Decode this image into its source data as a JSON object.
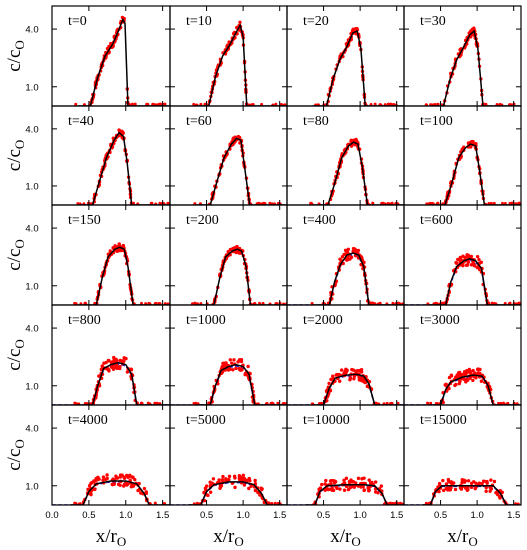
{
  "chart_data": {
    "type": "line",
    "title": "",
    "xlabel": "x/r",
    "xlabel_sub": "O",
    "ylabel": "c/c",
    "ylabel_sub": "O",
    "grid_rows": 5,
    "grid_cols": 4,
    "xlim": [
      0.0,
      1.6
    ],
    "ylim": [
      0.0,
      5.2
    ],
    "x_ticks": [
      0.0,
      0.5,
      1.0,
      1.5
    ],
    "x_tick_labels_first_col": [
      "0.0",
      "0.5",
      "1.0",
      "1.5"
    ],
    "x_tick_labels_other_cols": [
      "0.5",
      "1.0",
      "1.5"
    ],
    "y_tick_values": [
      1.0,
      4.0
    ],
    "y_tick_labels": [
      "1.0",
      "4.0"
    ],
    "colors": {
      "model": "#000000",
      "simulation_points": "#ff0000",
      "fit": "#1f1fc8"
    },
    "panels": [
      {
        "label": "t=0",
        "t": 0,
        "profile": [
          [
            0.35,
            0
          ],
          [
            0.52,
            0
          ],
          [
            0.62,
            1.5
          ],
          [
            0.72,
            2.6
          ],
          [
            0.82,
            3.2
          ],
          [
            0.9,
            3.9
          ],
          [
            0.96,
            4.5
          ],
          [
            0.99,
            4.3
          ],
          [
            1.03,
            0
          ],
          [
            1.6,
            0
          ]
        ]
      },
      {
        "label": "t=10",
        "t": 10,
        "profile": [
          [
            0.35,
            0
          ],
          [
            0.53,
            0
          ],
          [
            0.62,
            1.5
          ],
          [
            0.72,
            2.6
          ],
          [
            0.82,
            3.2
          ],
          [
            0.9,
            3.8
          ],
          [
            0.96,
            4.2
          ],
          [
            1.0,
            3.6
          ],
          [
            1.05,
            0
          ],
          [
            1.6,
            0
          ]
        ]
      },
      {
        "label": "t=20",
        "t": 20,
        "profile": [
          [
            0.35,
            0
          ],
          [
            0.54,
            0
          ],
          [
            0.63,
            1.4
          ],
          [
            0.72,
            2.4
          ],
          [
            0.82,
            3.1
          ],
          [
            0.9,
            3.8
          ],
          [
            0.96,
            3.9
          ],
          [
            1.01,
            3.0
          ],
          [
            1.07,
            0
          ],
          [
            1.6,
            0
          ]
        ]
      },
      {
        "label": "t=30",
        "t": 30,
        "profile": [
          [
            0.35,
            0
          ],
          [
            0.54,
            0
          ],
          [
            0.63,
            1.4
          ],
          [
            0.72,
            2.4
          ],
          [
            0.82,
            3.1
          ],
          [
            0.9,
            3.7
          ],
          [
            0.96,
            3.9
          ],
          [
            1.01,
            3.0
          ],
          [
            1.08,
            0
          ],
          [
            1.6,
            0
          ]
        ]
      },
      {
        "label": "t=40",
        "t": 40,
        "profile": [
          [
            0.35,
            0
          ],
          [
            0.55,
            0
          ],
          [
            0.64,
            1.2
          ],
          [
            0.74,
            2.5
          ],
          [
            0.84,
            3.4
          ],
          [
            0.91,
            3.8
          ],
          [
            0.97,
            3.6
          ],
          [
            1.02,
            2.2
          ],
          [
            1.08,
            0
          ],
          [
            1.6,
            0
          ]
        ]
      },
      {
        "label": "t=60",
        "t": 60,
        "profile": [
          [
            0.35,
            0
          ],
          [
            0.55,
            0
          ],
          [
            0.64,
            1.2
          ],
          [
            0.74,
            2.5
          ],
          [
            0.84,
            3.2
          ],
          [
            0.91,
            3.5
          ],
          [
            0.97,
            3.4
          ],
          [
            1.02,
            2.0
          ],
          [
            1.09,
            0
          ],
          [
            1.6,
            0
          ]
        ]
      },
      {
        "label": "t=80",
        "t": 80,
        "profile": [
          [
            0.35,
            0
          ],
          [
            0.56,
            0
          ],
          [
            0.65,
            1.1
          ],
          [
            0.75,
            2.5
          ],
          [
            0.84,
            3.1
          ],
          [
            0.91,
            3.3
          ],
          [
            0.97,
            3.2
          ],
          [
            1.03,
            2.0
          ],
          [
            1.1,
            0
          ],
          [
            1.6,
            0
          ]
        ]
      },
      {
        "label": "t=100",
        "t": 100,
        "profile": [
          [
            0.35,
            0
          ],
          [
            0.56,
            0
          ],
          [
            0.65,
            1.1
          ],
          [
            0.75,
            2.5
          ],
          [
            0.84,
            3.0
          ],
          [
            0.91,
            3.2
          ],
          [
            0.98,
            3.1
          ],
          [
            1.03,
            1.9
          ],
          [
            1.1,
            0
          ],
          [
            1.6,
            0
          ]
        ]
      },
      {
        "label": "t=150",
        "t": 150,
        "profile": [
          [
            0.35,
            0
          ],
          [
            0.6,
            0
          ],
          [
            0.68,
            1.4
          ],
          [
            0.76,
            2.5
          ],
          [
            0.85,
            2.9
          ],
          [
            0.92,
            3.0
          ],
          [
            0.98,
            2.9
          ],
          [
            1.03,
            2.0
          ],
          [
            1.1,
            0
          ],
          [
            1.6,
            0
          ]
        ]
      },
      {
        "label": "t=200",
        "t": 200,
        "profile": [
          [
            0.35,
            0
          ],
          [
            0.6,
            0
          ],
          [
            0.68,
            1.4
          ],
          [
            0.76,
            2.5
          ],
          [
            0.85,
            2.8
          ],
          [
            0.92,
            2.9
          ],
          [
            0.98,
            2.8
          ],
          [
            1.04,
            2.0
          ],
          [
            1.1,
            0
          ],
          [
            1.6,
            0
          ]
        ]
      },
      {
        "label": "t=400",
        "t": 400,
        "profile": [
          [
            0.35,
            0
          ],
          [
            0.58,
            0
          ],
          [
            0.65,
            1.2
          ],
          [
            0.73,
            2.1
          ],
          [
            0.82,
            2.6
          ],
          [
            0.9,
            2.7
          ],
          [
            0.98,
            2.6
          ],
          [
            1.05,
            2.0
          ],
          [
            1.12,
            0
          ],
          [
            1.6,
            0
          ]
        ]
      },
      {
        "label": "t=600",
        "t": 600,
        "profile": [
          [
            0.35,
            0
          ],
          [
            0.57,
            0
          ],
          [
            0.64,
            1.2
          ],
          [
            0.72,
            2.0
          ],
          [
            0.82,
            2.3
          ],
          [
            0.9,
            2.4
          ],
          [
            0.98,
            2.3
          ],
          [
            1.06,
            1.9
          ],
          [
            1.14,
            0
          ],
          [
            1.6,
            0
          ]
        ]
      },
      {
        "label": "t=800",
        "t": 800,
        "profile": [
          [
            0.35,
            0
          ],
          [
            0.55,
            0
          ],
          [
            0.62,
            1.0
          ],
          [
            0.7,
            1.9
          ],
          [
            0.8,
            2.1
          ],
          [
            0.9,
            2.2
          ],
          [
            1.0,
            2.1
          ],
          [
            1.08,
            1.6
          ],
          [
            1.15,
            0
          ],
          [
            1.6,
            0
          ]
        ]
      },
      {
        "label": "t=1000",
        "t": 1000,
        "profile": [
          [
            0.35,
            0
          ],
          [
            0.55,
            0
          ],
          [
            0.62,
            1.0
          ],
          [
            0.7,
            1.8
          ],
          [
            0.8,
            2.0
          ],
          [
            0.9,
            2.1
          ],
          [
            1.0,
            2.0
          ],
          [
            1.08,
            1.6
          ],
          [
            1.16,
            0
          ],
          [
            1.6,
            0
          ]
        ]
      },
      {
        "label": "t=2000",
        "t": 2000,
        "profile": [
          [
            0.35,
            0
          ],
          [
            0.5,
            0
          ],
          [
            0.58,
            0.9
          ],
          [
            0.66,
            1.4
          ],
          [
            0.8,
            1.55
          ],
          [
            0.95,
            1.6
          ],
          [
            1.05,
            1.5
          ],
          [
            1.12,
            1.1
          ],
          [
            1.2,
            0
          ],
          [
            1.6,
            0
          ]
        ]
      },
      {
        "label": "t=3000",
        "t": 3000,
        "profile": [
          [
            0.35,
            0
          ],
          [
            0.5,
            0
          ],
          [
            0.57,
            0.8
          ],
          [
            0.64,
            1.2
          ],
          [
            0.8,
            1.45
          ],
          [
            0.95,
            1.55
          ],
          [
            1.07,
            1.5
          ],
          [
            1.15,
            1.0
          ],
          [
            1.22,
            0
          ],
          [
            1.6,
            0
          ]
        ]
      },
      {
        "label": "t=4000",
        "t": 4000,
        "profile": [
          [
            0.25,
            0
          ],
          [
            0.42,
            0
          ],
          [
            0.5,
            0.7
          ],
          [
            0.6,
            1.1
          ],
          [
            0.8,
            1.25
          ],
          [
            1.0,
            1.25
          ],
          [
            1.15,
            1.1
          ],
          [
            1.25,
            0.6
          ],
          [
            1.32,
            0
          ],
          [
            1.6,
            0
          ]
        ]
      },
      {
        "label": "t=5000",
        "t": 5000,
        "profile": [
          [
            0.25,
            0
          ],
          [
            0.42,
            0
          ],
          [
            0.5,
            0.7
          ],
          [
            0.6,
            1.05
          ],
          [
            0.8,
            1.2
          ],
          [
            1.0,
            1.2
          ],
          [
            1.15,
            1.05
          ],
          [
            1.25,
            0.6
          ],
          [
            1.33,
            0
          ],
          [
            1.6,
            0
          ]
        ]
      },
      {
        "label": "t=10000",
        "t": 10000,
        "profile": [
          [
            0.25,
            0
          ],
          [
            0.38,
            0
          ],
          [
            0.45,
            0.7
          ],
          [
            0.55,
            1.0
          ],
          [
            0.8,
            1.05
          ],
          [
            1.05,
            1.05
          ],
          [
            1.2,
            1.0
          ],
          [
            1.3,
            0.6
          ],
          [
            1.37,
            0
          ],
          [
            1.6,
            0
          ]
        ]
      },
      {
        "label": "t=15000",
        "t": 15000,
        "profile": [
          [
            0.25,
            0
          ],
          [
            0.36,
            0
          ],
          [
            0.43,
            0.7
          ],
          [
            0.52,
            1.0
          ],
          [
            0.8,
            1.0
          ],
          [
            1.05,
            1.0
          ],
          [
            1.22,
            1.0
          ],
          [
            1.32,
            0.6
          ],
          [
            1.4,
            0
          ],
          [
            1.6,
            0
          ]
        ]
      }
    ]
  }
}
